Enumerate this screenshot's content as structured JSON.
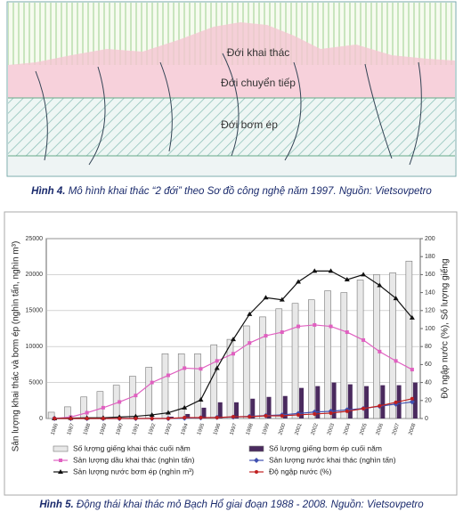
{
  "figure4": {
    "zones": [
      "Đới khai thác",
      "Đới chuyển tiếp",
      "Đới bơm ép"
    ],
    "caption_label": "Hình 4.",
    "caption_text": "Mô hình khai thác “2 đới” theo Sơ đồ công nghệ năm 1997. Nguồn: Vietsovpetro"
  },
  "chart_data": {
    "type": "bar",
    "y_label": "Sản lượng khai thác và bơm ép (nghìn tấn, nghìn m³)",
    "y2_label": "Độ ngập nước (%), Số lượng giếng",
    "categories": [
      "1986",
      "1987",
      "1988",
      "1989",
      "1990",
      "1991",
      "1992",
      "1993",
      "1994",
      "1995",
      "1996",
      "1997",
      "1998",
      "1999",
      "2000",
      "2001",
      "2002",
      "2003",
      "2004",
      "2005",
      "2006",
      "2007",
      "2008"
    ],
    "ylim": [
      0,
      25000
    ],
    "yticks": [
      0,
      5000,
      10000,
      15000,
      20000,
      25000
    ],
    "y2lim": [
      0,
      200
    ],
    "y2ticks": [
      0,
      20,
      40,
      60,
      80,
      100,
      120,
      140,
      160,
      180,
      200
    ],
    "grid": true,
    "series": [
      {
        "name": "Số lượng giếng khai thác cuối năm",
        "type": "bar",
        "axis": "y2",
        "color": "#e8e8e8",
        "values": [
          7,
          13,
          24,
          30,
          37,
          47,
          57,
          72,
          72,
          72,
          82,
          88,
          103,
          113,
          122,
          128,
          132,
          142,
          140,
          154,
          160,
          162,
          175
        ]
      },
      {
        "name": "Số lượng giếng bơm ép cuối năm",
        "type": "bar",
        "axis": "y2",
        "color": "#4a2a5e",
        "values": [
          0,
          0,
          0,
          0,
          0,
          0,
          0,
          2,
          5,
          12,
          18,
          18,
          22,
          24,
          25,
          34,
          36,
          40,
          38,
          36,
          37,
          37,
          40
        ]
      },
      {
        "name": "Sản lượng dầu khai thác (nghìn tấn)",
        "type": "line",
        "marker": "square",
        "color": "#e060c0",
        "values": [
          0,
          200,
          800,
          1500,
          2300,
          3200,
          5000,
          6000,
          7000,
          6900,
          8000,
          9000,
          10500,
          11500,
          12000,
          12800,
          13000,
          12800,
          12000,
          10900,
          9300,
          8000,
          6800
        ]
      },
      {
        "name": "Sản lượng nước khai thác (nghìn tấn)",
        "type": "line",
        "marker": "diamond",
        "color": "#4050b0",
        "values": [
          0,
          0,
          0,
          0,
          0,
          0,
          0,
          0,
          50,
          100,
          150,
          200,
          300,
          400,
          500,
          700,
          900,
          1000,
          1200,
          1400,
          1700,
          2000,
          2300
        ]
      },
      {
        "name": "Sản lượng nước bơm ép (nghìn m³)",
        "type": "line",
        "marker": "triangle",
        "color": "#111111",
        "values": [
          0,
          50,
          100,
          100,
          200,
          300,
          500,
          800,
          1500,
          2600,
          7000,
          11000,
          14500,
          16800,
          16500,
          19000,
          20500,
          20500,
          19300,
          20000,
          18500,
          16700,
          14000
        ]
      },
      {
        "name": "Độ ngập nước (%)",
        "type": "line",
        "axis": "y2",
        "marker": "circle",
        "color": "#c02020",
        "values": [
          0,
          0,
          0,
          0,
          0,
          0,
          0,
          0,
          1,
          1,
          1,
          2,
          2,
          3,
          3,
          4,
          5,
          6,
          8,
          11,
          14,
          18,
          22
        ]
      }
    ],
    "caption_label": "Hình 5.",
    "caption_text": "Động thái khai thác mỏ Bạch Hổ giai đoạn 1988 - 2008. Nguồn: Vietsovpetro"
  }
}
